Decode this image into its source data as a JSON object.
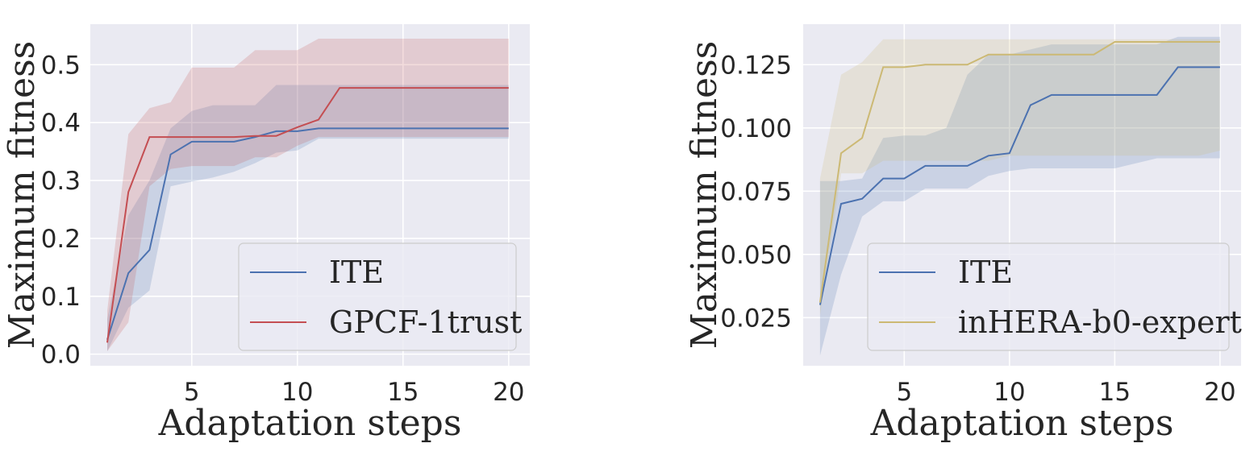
{
  "colors": {
    "background": "#eaeaf2",
    "grid": "#ffffff",
    "ite": "#4c72b0",
    "gpcf": "#c44e52",
    "inhera": "#ccb974",
    "legend_bg": "#eaeaf2",
    "legend_border": "#cccccc"
  },
  "chart_data": [
    {
      "type": "line",
      "xlabel": "Adaptation steps",
      "ylabel": "Maximum fitness",
      "xlim": [
        0.2,
        21.0
      ],
      "ylim": [
        -0.02,
        0.57
      ],
      "xticks": [
        5,
        10,
        15,
        20
      ],
      "xtick_labels": [
        "5",
        "10",
        "15",
        "20"
      ],
      "yticks": [
        0.0,
        0.1,
        0.2,
        0.3,
        0.4,
        0.5
      ],
      "ytick_labels": [
        "0.0",
        "0.1",
        "0.2",
        "0.3",
        "0.4",
        "0.5"
      ],
      "grid": true,
      "legend_position": "lower right",
      "x": [
        1,
        2,
        3,
        4,
        5,
        6,
        7,
        8,
        9,
        10,
        11,
        12,
        13,
        14,
        15,
        16,
        17,
        18,
        19,
        20
      ],
      "series": [
        {
          "name": "ITE",
          "color": "#4c72b0",
          "values": [
            0.025,
            0.14,
            0.18,
            0.345,
            0.367,
            0.367,
            0.367,
            0.375,
            0.385,
            0.385,
            0.39,
            0.39,
            0.39,
            0.39,
            0.39,
            0.39,
            0.39,
            0.39,
            0.39,
            0.39
          ],
          "lower": [
            0.005,
            0.08,
            0.11,
            0.29,
            0.298,
            0.305,
            0.315,
            0.33,
            0.348,
            0.352,
            0.372,
            0.372,
            0.372,
            0.372,
            0.372,
            0.372,
            0.372,
            0.372,
            0.372,
            0.372
          ],
          "upper": [
            0.06,
            0.24,
            0.3,
            0.39,
            0.42,
            0.43,
            0.43,
            0.43,
            0.465,
            0.465,
            0.465,
            0.465,
            0.465,
            0.465,
            0.465,
            0.465,
            0.465,
            0.465,
            0.465,
            0.465
          ]
        },
        {
          "name": "GPCF-1trust",
          "color": "#c44e52",
          "values": [
            0.02,
            0.28,
            0.375,
            0.375,
            0.375,
            0.375,
            0.375,
            0.377,
            0.377,
            0.392,
            0.405,
            0.46,
            0.46,
            0.46,
            0.46,
            0.46,
            0.46,
            0.46,
            0.46,
            0.46
          ],
          "lower": [
            0.005,
            0.055,
            0.29,
            0.32,
            0.325,
            0.325,
            0.325,
            0.34,
            0.34,
            0.36,
            0.375,
            0.375,
            0.375,
            0.375,
            0.375,
            0.375,
            0.375,
            0.375,
            0.375,
            0.375
          ],
          "upper": [
            0.075,
            0.38,
            0.425,
            0.435,
            0.495,
            0.495,
            0.495,
            0.525,
            0.525,
            0.525,
            0.545,
            0.545,
            0.545,
            0.545,
            0.545,
            0.545,
            0.545,
            0.545,
            0.545,
            0.545
          ]
        }
      ]
    },
    {
      "type": "line",
      "xlabel": "Adaptation steps",
      "ylabel": "Maximum fitness",
      "xlim": [
        0.2,
        21.0
      ],
      "ylim": [
        0.006,
        0.141
      ],
      "xticks": [
        5,
        10,
        15,
        20
      ],
      "xtick_labels": [
        "5",
        "10",
        "15",
        "20"
      ],
      "yticks": [
        0.025,
        0.05,
        0.075,
        0.1,
        0.125
      ],
      "ytick_labels": [
        "0.025",
        "0.050",
        "0.075",
        "0.100",
        "0.125"
      ],
      "grid": true,
      "legend_position": "lower right",
      "x": [
        1,
        2,
        3,
        4,
        5,
        6,
        7,
        8,
        9,
        10,
        11,
        12,
        13,
        14,
        15,
        16,
        17,
        18,
        19,
        20
      ],
      "series": [
        {
          "name": "ITE",
          "color": "#4c72b0",
          "values": [
            0.03,
            0.07,
            0.072,
            0.08,
            0.08,
            0.085,
            0.085,
            0.085,
            0.089,
            0.09,
            0.109,
            0.113,
            0.113,
            0.113,
            0.113,
            0.113,
            0.113,
            0.124,
            0.124,
            0.124
          ],
          "lower": [
            0.01,
            0.042,
            0.065,
            0.071,
            0.071,
            0.076,
            0.076,
            0.076,
            0.081,
            0.083,
            0.084,
            0.084,
            0.084,
            0.084,
            0.084,
            0.086,
            0.088,
            0.088,
            0.088,
            0.088
          ],
          "upper": [
            0.079,
            0.079,
            0.08,
            0.096,
            0.097,
            0.097,
            0.1,
            0.121,
            0.129,
            0.129,
            0.131,
            0.133,
            0.133,
            0.133,
            0.133,
            0.133,
            0.133,
            0.136,
            0.136,
            0.136
          ]
        },
        {
          "name": "inHERA-b0-expert",
          "color": "#ccb974",
          "values": [
            0.031,
            0.09,
            0.096,
            0.124,
            0.124,
            0.125,
            0.125,
            0.125,
            0.129,
            0.129,
            0.129,
            0.129,
            0.129,
            0.129,
            0.134,
            0.134,
            0.134,
            0.134,
            0.134,
            0.134
          ],
          "lower": [
            0.026,
            0.082,
            0.082,
            0.087,
            0.087,
            0.087,
            0.087,
            0.087,
            0.087,
            0.089,
            0.089,
            0.089,
            0.089,
            0.089,
            0.089,
            0.089,
            0.089,
            0.089,
            0.089,
            0.091
          ],
          "upper": [
            0.08,
            0.121,
            0.126,
            0.135,
            0.135,
            0.135,
            0.135,
            0.135,
            0.135,
            0.135,
            0.135,
            0.135,
            0.135,
            0.135,
            0.135,
            0.135,
            0.135,
            0.135,
            0.135,
            0.135
          ]
        }
      ]
    }
  ]
}
